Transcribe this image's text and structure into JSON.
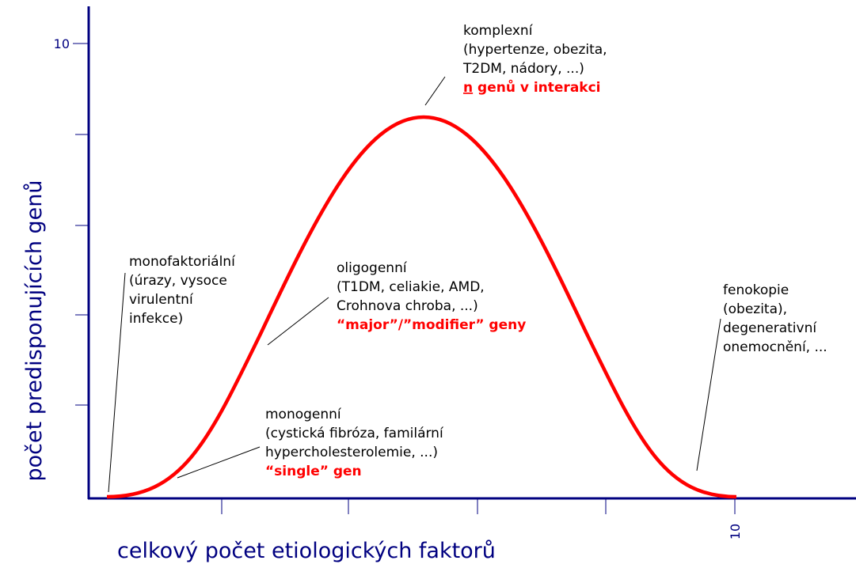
{
  "axes": {
    "y_label": "počet predisponujících genů",
    "x_label": "celkový počet etiologických faktorů",
    "y_tick_label": "10",
    "x_tick_label": "10"
  },
  "annotations": [
    {
      "lines": [
        "komplexní",
        "(hypertenze, obezita,",
        "T2DM, nádory, ...)"
      ],
      "highlight": [
        "n",
        " genů v interakci"
      ]
    },
    {
      "lines": [
        "monofaktoriální",
        "(úrazy, vysoce",
        "virulentní",
        "infekce)"
      ]
    },
    {
      "lines": [
        "oligogenní",
        "(T1DM, celiakie, AMD,",
        "Crohnova chroba, ...)"
      ],
      "highlight": [
        "“major”/”modifier” geny"
      ]
    },
    {
      "lines": [
        "fenokopie",
        "(obezita),",
        "degenerativní",
        "onemocnění, ..."
      ]
    },
    {
      "lines": [
        "monogenní",
        "(cystická fibróza, familární",
        "hypercholesterolemie, ...)"
      ],
      "highlight": [
        "“single” gen"
      ]
    }
  ]
}
